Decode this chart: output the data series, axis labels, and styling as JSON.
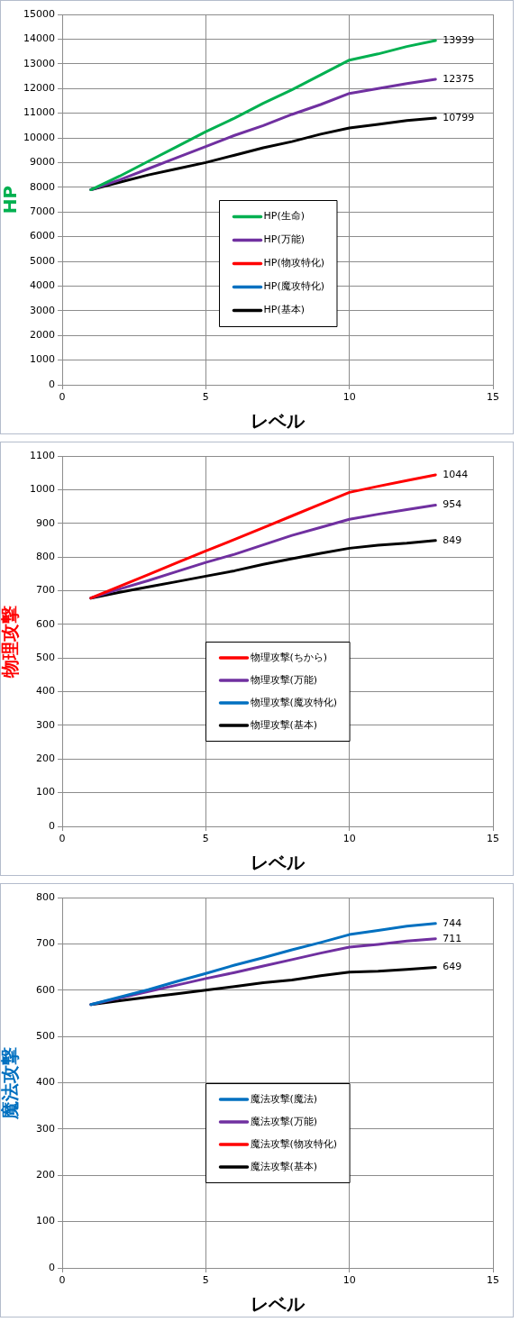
{
  "chart_data": [
    {
      "type": "line",
      "xlabel": "レベル",
      "ylabel": "HP",
      "x": [
        1,
        2,
        3,
        4,
        5,
        6,
        7,
        8,
        9,
        10,
        11,
        12,
        13
      ],
      "xlim": [
        0,
        15
      ],
      "xticks": [
        0,
        5,
        10,
        15
      ],
      "ylim": [
        0,
        15000
      ],
      "yticks": [
        0,
        1000,
        2000,
        3000,
        4000,
        5000,
        6000,
        7000,
        8000,
        9000,
        10000,
        11000,
        12000,
        13000,
        14000,
        15000
      ],
      "grid": true,
      "legend": "center",
      "line_style": "solid",
      "series": [
        {
          "name": "HP(生命)",
          "color": "#00b050",
          "values": [
            7900,
            8450,
            9050,
            9650,
            10250,
            10800,
            11400,
            11950,
            12550,
            13150,
            13400,
            13700,
            13939
          ],
          "value_labels": [
            null,
            null,
            null,
            null,
            null,
            null,
            null,
            null,
            null,
            null,
            null,
            null,
            "13939"
          ]
        },
        {
          "name": "HP(万能)",
          "color": "#7030a0",
          "values": [
            7900,
            8300,
            8750,
            9200,
            9650,
            10100,
            10500,
            10950,
            11350,
            11800,
            12000,
            12200,
            12375
          ],
          "value_labels": [
            null,
            null,
            null,
            null,
            null,
            null,
            null,
            null,
            null,
            null,
            null,
            null,
            "12375"
          ]
        },
        {
          "name": "HP(物攻特化)",
          "color": "#ff0000",
          "values": [
            null,
            null,
            null,
            null,
            null,
            null,
            null,
            null,
            null,
            null,
            null,
            null,
            null
          ]
        },
        {
          "name": "HP(魔攻特化)",
          "color": "#0070c0",
          "values": [
            null,
            null,
            null,
            null,
            null,
            null,
            null,
            null,
            null,
            null,
            null,
            null,
            null
          ]
        },
        {
          "name": "HP(基本)",
          "color": "#000000",
          "values": [
            7900,
            8200,
            8500,
            8750,
            9000,
            9300,
            9600,
            9850,
            10150,
            10400,
            10550,
            10700,
            10799
          ],
          "value_labels": [
            null,
            null,
            null,
            null,
            null,
            null,
            null,
            null,
            null,
            null,
            null,
            null,
            "10799"
          ]
        }
      ]
    },
    {
      "type": "line",
      "xlabel": "レベル",
      "ylabel": "物理攻撃",
      "x": [
        1,
        2,
        3,
        4,
        5,
        6,
        7,
        8,
        9,
        10,
        11,
        12,
        13
      ],
      "xlim": [
        0,
        15
      ],
      "xticks": [
        0,
        5,
        10,
        15
      ],
      "ylim": [
        0,
        1100
      ],
      "yticks": [
        0,
        100,
        200,
        300,
        400,
        500,
        600,
        700,
        800,
        900,
        1000,
        1100
      ],
      "grid": true,
      "legend": "center",
      "line_style": "solid",
      "series": [
        {
          "name": "物理攻撃(ちから)",
          "color": "#ff0000",
          "values": [
            678,
            713,
            748,
            783,
            818,
            852,
            887,
            922,
            957,
            992,
            1010,
            1027,
            1044
          ],
          "value_labels": [
            null,
            null,
            null,
            null,
            null,
            null,
            null,
            null,
            null,
            null,
            null,
            null,
            "1044"
          ]
        },
        {
          "name": "物理攻撃(万能)",
          "color": "#7030a0",
          "values": [
            678,
            705,
            730,
            757,
            784,
            808,
            836,
            864,
            888,
            912,
            927,
            941,
            954
          ],
          "value_labels": [
            null,
            null,
            null,
            null,
            null,
            null,
            null,
            null,
            null,
            null,
            null,
            null,
            "954"
          ]
        },
        {
          "name": "物理攻撃(魔攻特化)",
          "color": "#0070c0",
          "values": [
            null,
            null,
            null,
            null,
            null,
            null,
            null,
            null,
            null,
            null,
            null,
            null,
            null
          ]
        },
        {
          "name": "物理攻撃(基本)",
          "color": "#000000",
          "values": [
            678,
            695,
            711,
            727,
            743,
            759,
            778,
            795,
            811,
            826,
            835,
            841,
            849
          ],
          "value_labels": [
            null,
            null,
            null,
            null,
            null,
            null,
            null,
            null,
            null,
            null,
            null,
            null,
            "849"
          ]
        }
      ]
    },
    {
      "type": "line",
      "xlabel": "レベル",
      "ylabel": "魔法攻撃",
      "x": [
        1,
        2,
        3,
        4,
        5,
        6,
        7,
        8,
        9,
        10,
        11,
        12,
        13
      ],
      "xlim": [
        0,
        15
      ],
      "xticks": [
        0,
        5,
        10,
        15
      ],
      "ylim": [
        0,
        800
      ],
      "yticks": [
        0,
        100,
        200,
        300,
        400,
        500,
        600,
        700,
        800
      ],
      "grid": true,
      "legend": "center",
      "line_style": "solid",
      "series": [
        {
          "name": "魔法攻撃(魔法)",
          "color": "#0070c0",
          "values": [
            569,
            585,
            601,
            619,
            636,
            654,
            670,
            687,
            703,
            720,
            729,
            738,
            744
          ],
          "value_labels": [
            null,
            null,
            null,
            null,
            null,
            null,
            null,
            null,
            null,
            null,
            null,
            null,
            "744"
          ]
        },
        {
          "name": "魔法攻撃(万能)",
          "color": "#7030a0",
          "values": [
            569,
            583,
            597,
            611,
            625,
            638,
            652,
            666,
            680,
            693,
            699,
            706,
            711
          ],
          "value_labels": [
            null,
            null,
            null,
            null,
            null,
            null,
            null,
            null,
            null,
            null,
            null,
            null,
            "711"
          ]
        },
        {
          "name": "魔法攻撃(物攻特化)",
          "color": "#ff0000",
          "values": [
            null,
            null,
            null,
            null,
            null,
            null,
            null,
            null,
            null,
            null,
            null,
            null,
            null
          ]
        },
        {
          "name": "魔法攻撃(基本)",
          "color": "#000000",
          "values": [
            569,
            577,
            585,
            592,
            600,
            608,
            616,
            622,
            631,
            639,
            641,
            645,
            649
          ],
          "value_labels": [
            null,
            null,
            null,
            null,
            null,
            null,
            null,
            null,
            null,
            null,
            null,
            null,
            "649"
          ]
        }
      ]
    }
  ]
}
